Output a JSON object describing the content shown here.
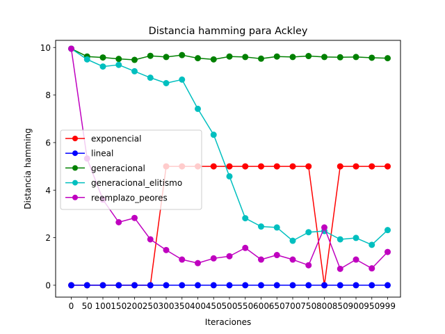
{
  "chart_data": {
    "type": "line",
    "title": "Distancia hamming para Ackley",
    "xlabel": "Iteraciones",
    "ylabel": "Distancia hamming",
    "categories": [
      "0",
      "50",
      "100",
      "150",
      "200",
      "250",
      "300",
      "350",
      "400",
      "450",
      "500",
      "550",
      "600",
      "650",
      "700",
      "750",
      "800",
      "850",
      "900",
      "950",
      "999"
    ],
    "ylim": [
      -0.5,
      10.3
    ],
    "yticks": [
      0,
      2,
      4,
      6,
      8,
      10
    ],
    "grid": false,
    "legend_position": "center-left",
    "series": [
      {
        "name": "exponencial",
        "color": "#ff0000",
        "values": [
          0,
          0,
          0,
          0,
          0,
          0,
          5,
          5,
          5,
          5,
          5,
          5,
          5,
          5,
          5,
          5,
          0,
          5,
          5,
          5,
          5
        ]
      },
      {
        "name": "lineal",
        "color": "#0000ff",
        "values": [
          0,
          0,
          0,
          0,
          0,
          0,
          0,
          0,
          0,
          0,
          0,
          0,
          0,
          0,
          0,
          0,
          0,
          0,
          0,
          0,
          0
        ]
      },
      {
        "name": "generacional",
        "color": "#008000",
        "values": [
          9.95,
          9.62,
          9.58,
          9.52,
          9.48,
          9.65,
          9.6,
          9.68,
          9.55,
          9.5,
          9.62,
          9.6,
          9.53,
          9.62,
          9.6,
          9.64,
          9.6,
          9.59,
          9.6,
          9.57,
          9.55
        ]
      },
      {
        "name": "generacional_elitismo",
        "color": "#00bfbf",
        "values": [
          9.95,
          9.5,
          9.2,
          9.27,
          9.0,
          8.73,
          8.5,
          8.65,
          7.42,
          6.33,
          4.58,
          2.82,
          2.47,
          2.43,
          1.87,
          2.23,
          2.28,
          1.93,
          1.99,
          1.7,
          2.32
        ]
      },
      {
        "name": "reemplazo_peores",
        "color": "#bf00bf",
        "values": [
          9.95,
          5.33,
          3.6,
          2.65,
          2.83,
          1.93,
          1.48,
          1.08,
          0.93,
          1.13,
          1.22,
          1.57,
          1.08,
          1.27,
          1.08,
          0.84,
          2.43,
          0.69,
          1.08,
          0.71,
          1.4
        ]
      }
    ]
  }
}
